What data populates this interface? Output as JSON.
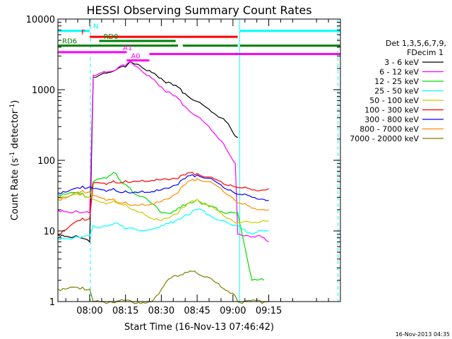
{
  "chart_data": {
    "type": "line",
    "title": "HESSI Observing Summary Count Rates",
    "xlabel": "Start Time (16-Nov-13 07:46:42)",
    "ylabel_main": "Count Rate (s",
    "ylabel_sup1": "-1",
    "ylabel_mid": " detector",
    "ylabel_sup2": "-1",
    "ylabel_end": ")",
    "yscale": "log",
    "ylim": [
      1,
      10000
    ],
    "xlim_min": [
      466.7,
      585
    ],
    "x_ticks": [
      {
        "label": "08:00",
        "min": 480
      },
      {
        "label": "08:15",
        "min": 495
      },
      {
        "label": "08:30",
        "min": 510
      },
      {
        "label": "08:45",
        "min": 525
      },
      {
        "label": "09:00",
        "min": 540
      },
      {
        "label": "09:15",
        "min": 555
      }
    ],
    "y_ticks": [
      {
        "label": "1",
        "value": 1
      },
      {
        "label": "10",
        "value": 10
      },
      {
        "label": "100",
        "value": 100
      },
      {
        "label": "1000",
        "value": 1000
      },
      {
        "label": "10000",
        "value": 10000
      }
    ],
    "legend_title_1": "Det 1,3,5,6,7,9,",
    "legend_title_2": "FDecim 1",
    "series": [
      {
        "name": "3 - 6 keV",
        "color": "#000000",
        "points": [
          [
            466.7,
            9
          ],
          [
            476,
            8
          ],
          [
            480,
            7
          ],
          [
            481.5,
            1500
          ],
          [
            484,
            1600
          ],
          [
            488,
            1750
          ],
          [
            491,
            1900
          ],
          [
            493,
            2100
          ],
          [
            496,
            2300
          ],
          [
            497,
            2500
          ],
          [
            500,
            2300
          ],
          [
            502,
            2050
          ],
          [
            503,
            1950
          ],
          [
            506,
            1750
          ],
          [
            510,
            1450
          ],
          [
            515,
            1150
          ],
          [
            520,
            880
          ],
          [
            525,
            680
          ],
          [
            530,
            530
          ],
          [
            535,
            400
          ],
          [
            538,
            330
          ],
          [
            541,
            220
          ],
          [
            542,
            210
          ]
        ]
      },
      {
        "name": "6 - 12 keV",
        "color": "#ff00ff",
        "points": [
          [
            466.7,
            20
          ],
          [
            476,
            18
          ],
          [
            480,
            18
          ],
          [
            481.5,
            1600
          ],
          [
            484,
            1700
          ],
          [
            488,
            1800
          ],
          [
            491,
            1900
          ],
          [
            493,
            2200
          ],
          [
            496,
            2400
          ],
          [
            497,
            2500
          ],
          [
            500,
            2100
          ],
          [
            502,
            1800
          ],
          [
            503,
            1700
          ],
          [
            506,
            1450
          ],
          [
            510,
            1100
          ],
          [
            515,
            820
          ],
          [
            520,
            580
          ],
          [
            525,
            420
          ],
          [
            530,
            300
          ],
          [
            535,
            190
          ],
          [
            538,
            130
          ],
          [
            541,
            90
          ],
          [
            542,
            9
          ],
          [
            553,
            8
          ],
          [
            555,
            7
          ]
        ]
      },
      {
        "name": "12 - 25 keV",
        "color": "#00dd00",
        "points": [
          [
            466.7,
            33
          ],
          [
            472,
            35
          ],
          [
            476,
            33
          ],
          [
            480,
            30
          ],
          [
            481.5,
            50
          ],
          [
            484,
            55
          ],
          [
            488,
            60
          ],
          [
            491,
            65
          ],
          [
            493,
            50
          ],
          [
            498,
            35
          ],
          [
            503,
            30
          ],
          [
            510,
            18
          ],
          [
            515,
            19
          ],
          [
            520,
            23
          ],
          [
            525,
            28
          ],
          [
            530,
            22
          ],
          [
            535,
            19
          ],
          [
            538,
            18
          ],
          [
            542,
            18
          ],
          [
            548,
            2
          ],
          [
            553,
            2
          ]
        ]
      },
      {
        "name": "25 - 50 keV",
        "color": "#00ffff",
        "points": [
          [
            466.7,
            8
          ],
          [
            476,
            8
          ],
          [
            480,
            8.5
          ],
          [
            481.5,
            12
          ],
          [
            484,
            11
          ],
          [
            488,
            12
          ],
          [
            491,
            13
          ],
          [
            493,
            12
          ],
          [
            496,
            11
          ],
          [
            498,
            11
          ],
          [
            503,
            10
          ],
          [
            506,
            10.5
          ],
          [
            510,
            12
          ],
          [
            515,
            13
          ],
          [
            520,
            17
          ],
          [
            525,
            20
          ],
          [
            530,
            17
          ],
          [
            535,
            14
          ],
          [
            538,
            13
          ],
          [
            541,
            12
          ],
          [
            542,
            12
          ],
          [
            548,
            9
          ],
          [
            553,
            10
          ],
          [
            555,
            10
          ]
        ]
      },
      {
        "name": "50 - 100 keV",
        "color": "#cccc00",
        "points": [
          [
            466.7,
            30
          ],
          [
            472,
            32
          ],
          [
            476,
            32
          ],
          [
            480,
            30
          ],
          [
            481.5,
            28
          ],
          [
            484,
            26
          ],
          [
            488,
            25
          ],
          [
            491,
            25
          ],
          [
            493,
            24
          ],
          [
            496,
            22
          ],
          [
            498,
            20
          ],
          [
            503,
            17
          ],
          [
            506,
            15
          ],
          [
            510,
            14
          ],
          [
            515,
            17
          ],
          [
            520,
            22
          ],
          [
            525,
            28
          ],
          [
            530,
            23
          ],
          [
            535,
            18
          ],
          [
            538,
            15
          ],
          [
            541,
            13
          ],
          [
            542,
            13
          ],
          [
            548,
            13
          ],
          [
            553,
            14
          ],
          [
            555,
            14
          ]
        ]
      },
      {
        "name": "100 - 300 keV",
        "color": "#ff0000",
        "points": [
          [
            466.7,
            9
          ],
          [
            472,
            12
          ],
          [
            476,
            14
          ],
          [
            480,
            15
          ],
          [
            481.5,
            48
          ],
          [
            484,
            48
          ],
          [
            488,
            48
          ],
          [
            491,
            48
          ],
          [
            493,
            48
          ],
          [
            496,
            49
          ],
          [
            498,
            50
          ],
          [
            503,
            50
          ],
          [
            506,
            52
          ],
          [
            510,
            53
          ],
          [
            515,
            56
          ],
          [
            520,
            62
          ],
          [
            525,
            65
          ],
          [
            530,
            58
          ],
          [
            535,
            50
          ],
          [
            538,
            44
          ],
          [
            541,
            42
          ],
          [
            542,
            41
          ],
          [
            548,
            38
          ],
          [
            553,
            38
          ],
          [
            555,
            40
          ]
        ]
      },
      {
        "name": "300 - 800 keV",
        "color": "#0000ff",
        "points": [
          [
            466.7,
            35
          ],
          [
            472,
            38
          ],
          [
            476,
            40
          ],
          [
            480,
            42
          ],
          [
            481.5,
            40
          ],
          [
            484,
            39
          ],
          [
            488,
            38
          ],
          [
            491,
            37
          ],
          [
            493,
            35
          ],
          [
            496,
            35
          ],
          [
            498,
            35
          ],
          [
            503,
            35
          ],
          [
            506,
            36
          ],
          [
            510,
            38
          ],
          [
            515,
            44
          ],
          [
            520,
            55
          ],
          [
            525,
            62
          ],
          [
            530,
            56
          ],
          [
            535,
            45
          ],
          [
            538,
            38
          ],
          [
            541,
            34
          ],
          [
            542,
            33
          ],
          [
            548,
            30
          ],
          [
            553,
            28
          ],
          [
            555,
            27
          ]
        ]
      },
      {
        "name": "800 - 7000 keV",
        "color": "#ff8c00",
        "points": [
          [
            466.7,
            28
          ],
          [
            472,
            32
          ],
          [
            476,
            35
          ],
          [
            480,
            36
          ],
          [
            481.5,
            32
          ],
          [
            484,
            30
          ],
          [
            488,
            28
          ],
          [
            491,
            26
          ],
          [
            493,
            25
          ],
          [
            496,
            24
          ],
          [
            498,
            23
          ],
          [
            503,
            23
          ],
          [
            506,
            24
          ],
          [
            510,
            26
          ],
          [
            515,
            32
          ],
          [
            520,
            45
          ],
          [
            525,
            55
          ],
          [
            530,
            50
          ],
          [
            535,
            40
          ],
          [
            538,
            32
          ],
          [
            541,
            27
          ],
          [
            542,
            25
          ],
          [
            548,
            21
          ],
          [
            553,
            20
          ],
          [
            555,
            20
          ]
        ]
      },
      {
        "name": "7000 - 20000 keV",
        "color": "#808000",
        "points": [
          [
            466.7,
            1.5
          ],
          [
            472,
            1.6
          ],
          [
            476,
            1.5
          ],
          [
            480,
            1.5
          ],
          [
            481.5,
            1
          ],
          [
            506,
            1
          ],
          [
            510,
            1.5
          ],
          [
            515,
            2.3
          ],
          [
            520,
            2.6
          ],
          [
            525,
            2.5
          ],
          [
            530,
            2.2
          ],
          [
            535,
            1.6
          ],
          [
            538,
            1.4
          ],
          [
            541,
            1.2
          ],
          [
            542,
            1
          ],
          [
            555,
            1
          ]
        ]
      }
    ],
    "overlays": [
      {
        "label": "N",
        "color": "#00ffff",
        "y": 6800,
        "segments": [
          [
            466.7,
            480
          ],
          [
            543,
            585
          ]
        ]
      },
      {
        "label": "F",
        "color": "#ff0000",
        "y": 5600,
        "segments": [
          [
            480,
            542
          ]
        ]
      },
      {
        "label": "RD0",
        "color": "#008000",
        "y": 4900,
        "segments": [
          [
            484,
            516
          ]
        ]
      },
      {
        "label": "RD6",
        "color": "#008000",
        "y": 4200,
        "segments": [
          [
            466.7,
            517
          ],
          [
            519,
            542
          ],
          [
            543,
            585
          ]
        ]
      },
      {
        "label": "A1",
        "color": "#ff00ff",
        "y": 3400,
        "segments": [
          [
            466.7,
            495.5
          ]
        ]
      },
      {
        "label": "A0",
        "color": "#ff00ff",
        "y": 2600,
        "segments": [
          [
            495.5,
            502
          ],
          [
            501,
            505
          ]
        ]
      },
      {
        "label": "",
        "color": "#ff00ff",
        "y": 3200,
        "segments": [
          [
            505,
            585
          ]
        ]
      }
    ],
    "saa_lines": [
      {
        "color": "#00ffff",
        "min": 466.7,
        "style": "solid"
      },
      {
        "color": "#00ffff",
        "min": 480.3,
        "style": "dash"
      },
      {
        "color": "#00ffff",
        "min": 542.8,
        "style": "solid"
      },
      {
        "color": "#00ffff",
        "min": 584,
        "style": "dash"
      }
    ]
  },
  "footer_timestamp": "16-Nov-2013 04:35"
}
